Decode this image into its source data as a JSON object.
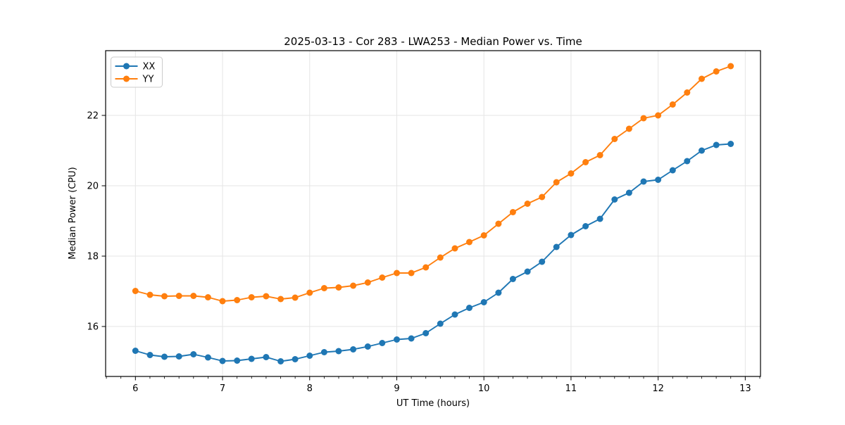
{
  "chart_data": {
    "type": "line",
    "title": "2025-03-13 - Cor 283 - LWA253 - Median Power vs. Time",
    "xlabel": "UT Time (hours)",
    "ylabel": "Median Power (CPU)",
    "xlim": [
      5.658,
      13.175
    ],
    "ylim": [
      14.58,
      23.84
    ],
    "x_major_ticks": [
      6,
      7,
      8,
      9,
      10,
      11,
      12,
      13
    ],
    "y_major_ticks": [
      16,
      18,
      20,
      22
    ],
    "x_minor_step": 0.166667,
    "grid": true,
    "legend_position": "upper-left",
    "colors": {
      "grid": "#e5e5e5",
      "spine": "#000000",
      "legend_edge": "#cccccc"
    },
    "x": [
      6.0,
      6.167,
      6.333,
      6.5,
      6.667,
      6.833,
      7.0,
      7.167,
      7.333,
      7.5,
      7.667,
      7.833,
      8.0,
      8.167,
      8.333,
      8.5,
      8.667,
      8.833,
      9.0,
      9.167,
      9.333,
      9.5,
      9.667,
      9.833,
      10.0,
      10.167,
      10.333,
      10.5,
      10.667,
      10.833,
      11.0,
      11.167,
      11.333,
      11.5,
      11.667,
      11.833,
      12.0,
      12.167,
      12.333,
      12.5,
      12.667,
      12.833
    ],
    "series": [
      {
        "name": "XX",
        "color": "#1f77b4",
        "values": [
          15.31,
          15.19,
          15.14,
          15.15,
          15.21,
          15.12,
          15.02,
          15.03,
          15.08,
          15.13,
          15.01,
          15.07,
          15.17,
          15.27,
          15.3,
          15.35,
          15.43,
          15.53,
          15.63,
          15.66,
          15.81,
          16.08,
          16.34,
          16.53,
          16.69,
          16.96,
          17.35,
          17.56,
          17.84,
          18.26,
          18.6,
          18.85,
          19.06,
          19.61,
          19.8,
          20.12,
          20.17,
          20.44,
          20.7,
          21.0,
          21.16,
          21.19
        ]
      },
      {
        "name": "YY",
        "color": "#ff7f0e",
        "values": [
          17.01,
          16.9,
          16.86,
          16.87,
          16.87,
          16.83,
          16.72,
          16.75,
          16.83,
          16.86,
          16.78,
          16.82,
          16.96,
          17.09,
          17.11,
          17.16,
          17.25,
          17.39,
          17.52,
          17.52,
          17.68,
          17.96,
          18.22,
          18.4,
          18.59,
          18.92,
          19.25,
          19.49,
          19.68,
          20.1,
          20.35,
          20.67,
          20.87,
          21.33,
          21.62,
          21.92,
          22.0,
          22.31,
          22.65,
          23.04,
          23.25,
          23.4
        ]
      }
    ]
  }
}
